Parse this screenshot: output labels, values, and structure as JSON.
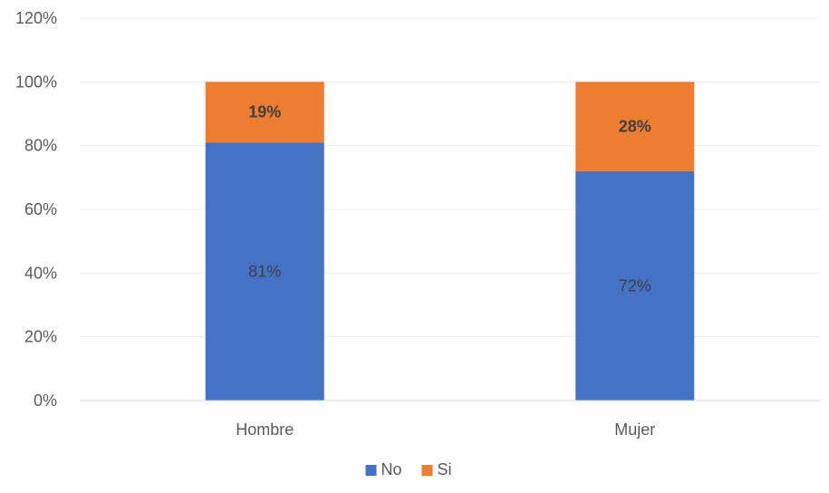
{
  "chart_data": {
    "type": "bar",
    "stacked": true,
    "categories": [
      "Hombre",
      "Mujer"
    ],
    "series": [
      {
        "name": "No",
        "values": [
          81,
          72
        ],
        "labels": [
          "81%",
          "72%"
        ],
        "color": "#4472C4"
      },
      {
        "name": "Si",
        "values": [
          19,
          28
        ],
        "labels": [
          "19%",
          "28%"
        ],
        "color": "#ED7D31"
      }
    ],
    "ylim": [
      0,
      120
    ],
    "yticks": [
      "0%",
      "20%",
      "40%",
      "60%",
      "80%",
      "100%",
      "120%"
    ],
    "grid": true,
    "legend_position": "bottom"
  }
}
